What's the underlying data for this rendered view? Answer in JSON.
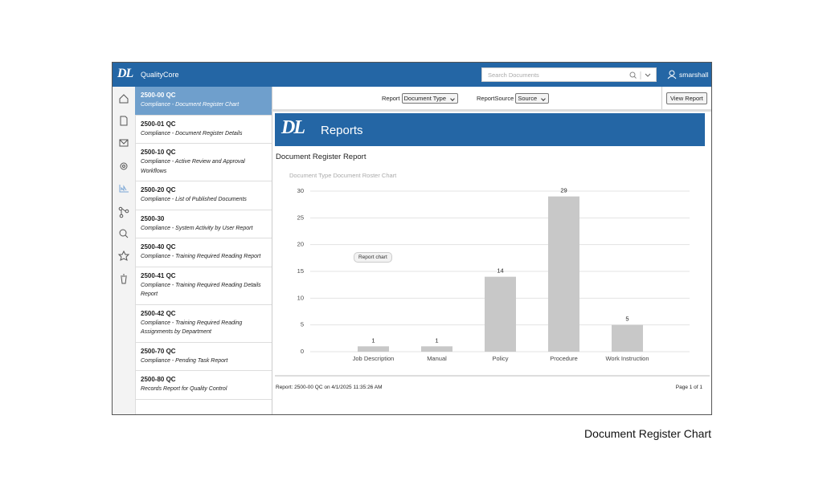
{
  "app": {
    "logo": "DL",
    "name": "QualityCore",
    "search_placeholder": "Search Documents",
    "user": "smarshall"
  },
  "reports": [
    {
      "code": "2500-00 QC",
      "title": "Compliance - Document Register Chart"
    },
    {
      "code": "2500-01 QC",
      "title": "Compliance - Document Register Details"
    },
    {
      "code": "2500-10 QC",
      "title": "Compliance - Active Review and Approval Workflows"
    },
    {
      "code": "2500-20 QC",
      "title": "Compliance - List of Published Documents"
    },
    {
      "code": "2500-30",
      "title": "Compliance - System Activity by User Report"
    },
    {
      "code": "2500-40 QC",
      "title": "Compliance - Training Required Reading Report"
    },
    {
      "code": "2500-41 QC",
      "title": "Compliance - Training Required Reading Details Report"
    },
    {
      "code": "2500-42 QC",
      "title": "Compliance - Training Required Reading Assignments by Department"
    },
    {
      "code": "2500-70 QC",
      "title": "Compliance - Pending Task Report"
    },
    {
      "code": "2500-80 QC",
      "title": "Records Report for Quality Control"
    }
  ],
  "toolbar": {
    "report_label": "Report",
    "report_value": "Document Type",
    "source_label": "ReportSource",
    "source_value": "Source",
    "button": "View Report"
  },
  "banner": {
    "logo": "DL",
    "title": "Reports"
  },
  "report": {
    "title": "Document Register Report",
    "tooltip": "Report chart",
    "footer": "Report: 2500-00 QC on 4/1/2025 11:35:26 AM",
    "page": "Page 1 of 1"
  },
  "chart_data": {
    "type": "bar",
    "title": "Document Type Document Roster Chart",
    "categories": [
      "Job Description",
      "Manual",
      "Policy",
      "Procedure",
      "Work Instruction"
    ],
    "values": [
      1,
      1,
      14,
      29,
      5
    ],
    "color": "#c8c8c8",
    "ylim": [
      0,
      30
    ],
    "yticks": [
      0,
      5,
      10,
      15,
      20,
      25,
      30
    ],
    "grid": true
  },
  "caption": "Document Register Chart"
}
